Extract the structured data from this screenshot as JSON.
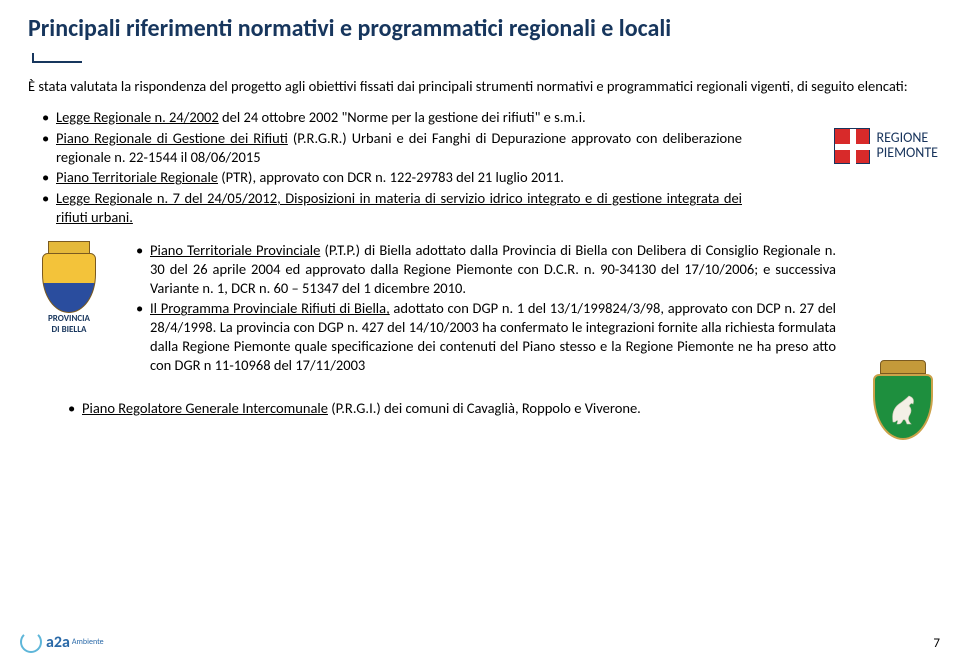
{
  "title": "Principali riferimenti normativi e programmatici regionali e locali",
  "intro": "È stata valutata la rispondenza del progetto agli obiettivi fissati dai principali strumenti normativi e programmatici regionali vigenti, di seguito elencati:",
  "block1": [
    {
      "pre": "",
      "u": "Legge Regionale n. 24/2002",
      "post": " del 24 ottobre 2002 \"Norme per la gestione dei rifiuti\" e s.m.i."
    },
    {
      "pre": "",
      "u": "Piano Regionale di Gestione dei Rifiuti",
      "post": " (P.R.G.R.) Urbani e dei Fanghi di Depurazione approvato con deliberazione regionale n. 22-1544 il 08/06/2015"
    },
    {
      "pre": "",
      "u": "Piano Territoriale Regionale",
      "post": " (PTR), approvato con DCR n. 122-29783 del 21 luglio 2011."
    },
    {
      "pre": "",
      "u": "Legge Regionale n. 7 del 24/05/2012, Disposizioni in materia di servizio idrico integrato e di gestione integrata dei rifiuti urbani.",
      "post": ""
    }
  ],
  "block2": [
    {
      "pre": "",
      "u": "Piano Territoriale Provinciale",
      "post": " (P.T.P.) di Biella adottato dalla Provincia di Biella con Delibera di Consiglio Regionale n. 30 del 26 aprile 2004 ed approvato dalla Regione Piemonte con D.C.R. n. 90-34130 del 17/10/2006; e successiva Variante n. 1, DCR n. 60 – 51347 del 1 dicembre 2010."
    },
    {
      "pre": "",
      "u": "Il Programma Provinciale Rifiuti di Biella,",
      "post": " adottato con DGP n. 1 del 13/1/199824/3/98, approvato con DCP n. 27 del 28/4/1998. La provincia con DGP n. 427 del 14/10/2003 ha confermato le integrazioni fornite alla richiesta formulata dalla Regione Piemonte quale specificazione dei contenuti del Piano stesso e la Regione Piemonte ne ha preso atto con DGR n 11-10968 del 17/11/2003"
    }
  ],
  "block3": [
    {
      "pre": "",
      "u": "Piano Regolatore Generale Intercomunale",
      "post": " (P.R.G.I.) dei comuni di Cavaglià, Roppolo e Viverone."
    }
  ],
  "regione_label_1": "REGIONE",
  "regione_label_2": "PIEMONTE",
  "biella_label_1": "PROVINCIA",
  "biella_label_2": "DI BIELLA",
  "a2a_text": "a2a",
  "a2a_sub": "Ambiente",
  "page_num": "7"
}
